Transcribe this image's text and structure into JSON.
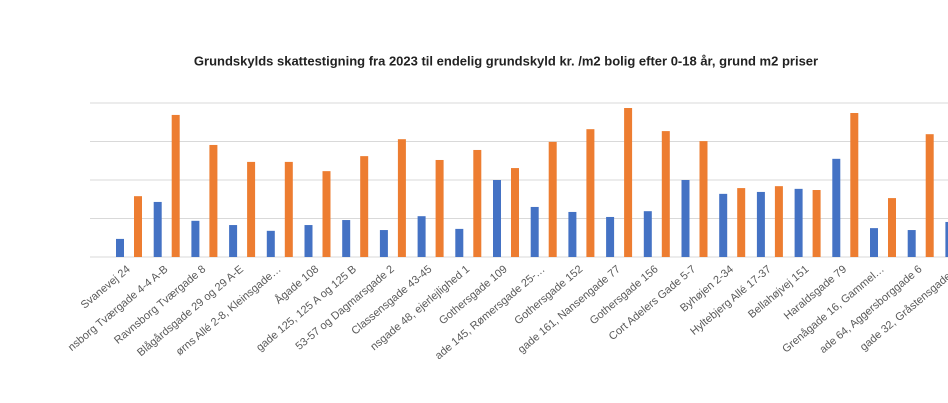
{
  "chart_data": {
    "type": "bar",
    "title": "Grundskylds skattestigning fra 2023 til endelig grundskyld kr. /m2 bolig efter 0-18 år, grund m2 priser",
    "categories": [
      "Svanevej 24",
      "nsborg Tværgade 4-4 A-B",
      "Ravnsborg Tværgade 8",
      "Blågårdsgade 29 og 29 A-E",
      "ørns Allé 2-8, Kleinsgade…",
      "Ågade 108",
      "gade 125, 125 A og 125 B",
      "53-57 og Dagmarsgade 2",
      "Classensgade 43-45",
      "nsgade 48, ejerlejlighed 1",
      "Gothersgade 109",
      "ade 145, Rømersgade 25-…",
      "Gothersgade 152",
      "gade 161, Nansengade 77",
      "Gothersgade 156",
      "Cort Adelers Gade 5-7",
      "Byhøjen 2-34",
      "Hyltebjerg Allé 17-37",
      "Bellahøjvej 151",
      "Haraldsgade 79",
      "Grenågade 16, Gammel…",
      "ade 64, Aggersborggade 6",
      "gade 32, Gråstensgade…"
    ],
    "series": [
      {
        "color": "#4472c4",
        "values": [
          0.47,
          1.43,
          0.94,
          0.83,
          0.68,
          0.83,
          0.96,
          0.7,
          1.06,
          0.73,
          2.0,
          1.3,
          1.17,
          1.04,
          1.19,
          2.0,
          1.64,
          1.69,
          1.77,
          2.55,
          0.75,
          0.7,
          0.91
        ]
      },
      {
        "color": "#ed7d31",
        "values": [
          1.58,
          3.69,
          2.91,
          2.47,
          2.47,
          2.23,
          2.62,
          3.06,
          2.52,
          2.78,
          2.31,
          2.99,
          3.32,
          3.87,
          3.27,
          3.01,
          1.79,
          1.84,
          1.74,
          3.74,
          1.53,
          3.19,
          null
        ]
      }
    ],
    "ylim": [
      0,
      4
    ],
    "yticks": [
      0,
      1,
      2,
      3,
      4
    ],
    "grid": true
  }
}
